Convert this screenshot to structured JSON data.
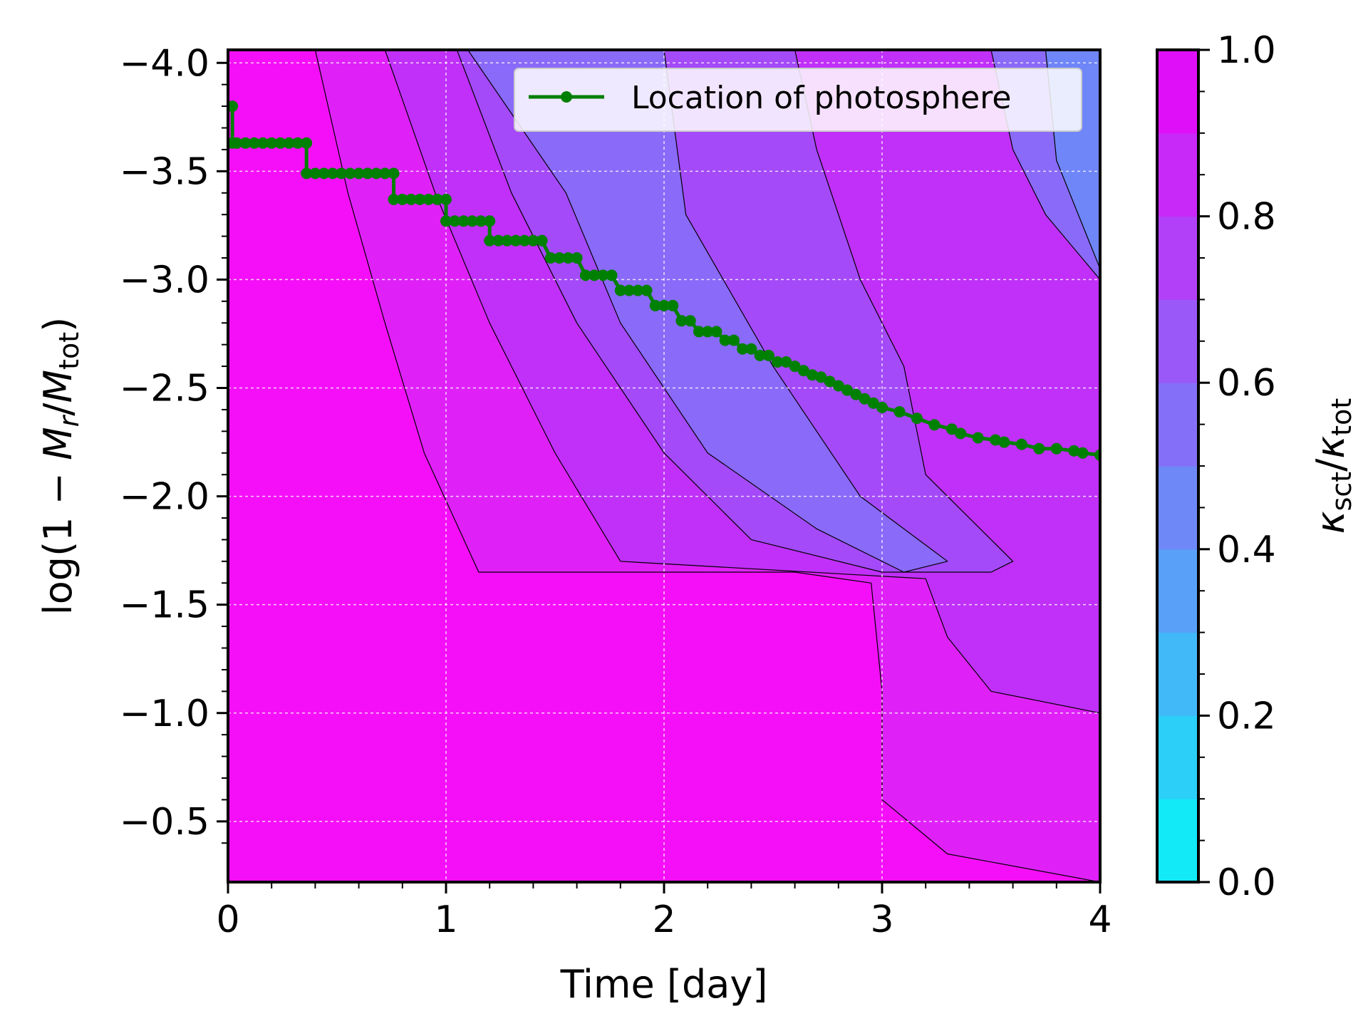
{
  "chart_data": {
    "type": "heatmap",
    "subtype": "filled contour with overlaid line",
    "xlabel": "Time [day]",
    "ylabel": "log(1 − M_r/M_tot)",
    "colorbar_label": "κ_sct/κ_tot",
    "xlim": [
      0,
      4
    ],
    "ylim": [
      -0.22,
      -4.06
    ],
    "y_axis_inverted": true,
    "grid": true,
    "x_ticks": [
      0,
      1,
      2,
      3,
      4
    ],
    "x_tick_labels": [
      "0",
      "1",
      "2",
      "3",
      "4"
    ],
    "y_ticks": [
      -4.0,
      -3.5,
      -3.0,
      -2.5,
      -2.0,
      -1.5,
      -1.0,
      -0.5
    ],
    "y_tick_labels": [
      "−4.0",
      "−3.5",
      "−3.0",
      "−2.5",
      "−2.0",
      "−1.5",
      "−1.0",
      "−0.5"
    ],
    "colorbar": {
      "range": [
        0.0,
        1.0
      ],
      "ticks": [
        0.0,
        0.2,
        0.4,
        0.6,
        0.8,
        1.0
      ],
      "tick_labels": [
        "0.0",
        "0.2",
        "0.4",
        "0.6",
        "0.8",
        "1.0"
      ],
      "levels": [
        0.0,
        0.1,
        0.2,
        0.3,
        0.4,
        0.5,
        0.6,
        0.7,
        0.8,
        0.9,
        1.0
      ],
      "colors": [
        "#12eaf8",
        "#2bcff8",
        "#41b8f8",
        "#58a0f8",
        "#6e88f8",
        "#8470f8",
        "#9a58f8",
        "#b140f8",
        "#c828f8",
        "#df10f8"
      ]
    },
    "contour_regions": [
      {
        "level_range": [
          0.9,
          1.0
        ],
        "color": "#f50ff8",
        "points": [
          [
            0,
            -0.22
          ],
          [
            0,
            -4.06
          ],
          [
            4,
            -4.06
          ],
          [
            4,
            -0.22
          ]
        ]
      },
      {
        "level_range": [
          0.8,
          0.9
        ],
        "color": "#df21f8",
        "points": [
          [
            0.4,
            -4.06
          ],
          [
            0.55,
            -3.4
          ],
          [
            0.72,
            -2.8
          ],
          [
            0.9,
            -2.2
          ],
          [
            1.15,
            -1.65
          ],
          [
            2.6,
            -1.65
          ],
          [
            2.95,
            -1.6
          ],
          [
            3.0,
            -1.1
          ],
          [
            3.0,
            -0.6
          ],
          [
            3.3,
            -0.35
          ],
          [
            4,
            -0.22
          ],
          [
            4,
            -4.06
          ]
        ]
      },
      {
        "level_range": [
          0.7,
          0.8
        ],
        "color": "#c030f8",
        "points": [
          [
            0.72,
            -4.06
          ],
          [
            0.95,
            -3.4
          ],
          [
            1.2,
            -2.8
          ],
          [
            1.5,
            -2.2
          ],
          [
            1.8,
            -1.7
          ],
          [
            3.2,
            -1.62
          ],
          [
            3.3,
            -1.35
          ],
          [
            3.5,
            -1.1
          ],
          [
            4,
            -1.0
          ],
          [
            4,
            -4.06
          ]
        ]
      },
      {
        "level_range": [
          0.6,
          0.7
        ],
        "color": "#a44af8",
        "points": [
          [
            1.05,
            -4.06
          ],
          [
            1.3,
            -3.4
          ],
          [
            1.6,
            -2.8
          ],
          [
            2.0,
            -2.2
          ],
          [
            2.4,
            -1.8
          ],
          [
            3.0,
            -1.65
          ],
          [
            3.5,
            -1.65
          ],
          [
            3.6,
            -1.7
          ],
          [
            3.2,
            -2.1
          ],
          [
            3.1,
            -2.6
          ],
          [
            2.9,
            -3.0
          ],
          [
            2.7,
            -3.6
          ],
          [
            2.6,
            -4.06
          ]
        ]
      },
      {
        "level_range": [
          0.5,
          0.6
        ],
        "color": "#8a6af8",
        "points": [
          [
            1.1,
            -4.06
          ],
          [
            1.55,
            -3.4
          ],
          [
            1.8,
            -2.8
          ],
          [
            2.2,
            -2.2
          ],
          [
            2.7,
            -1.85
          ],
          [
            3.1,
            -1.65
          ],
          [
            3.3,
            -1.7
          ],
          [
            2.9,
            -2.0
          ],
          [
            2.5,
            -2.6
          ],
          [
            2.1,
            -3.3
          ],
          [
            2.0,
            -4.06
          ]
        ]
      },
      {
        "level_range": [
          0.5,
          0.6
        ],
        "color": "#8a6af8",
        "points": [
          [
            3.5,
            -4.06
          ],
          [
            3.6,
            -3.6
          ],
          [
            3.75,
            -3.3
          ],
          [
            4,
            -3.0
          ],
          [
            4,
            -4.06
          ]
        ]
      },
      {
        "level_range": [
          0.4,
          0.5
        ],
        "color": "#6f86f8",
        "points": [
          [
            3.75,
            -4.06
          ],
          [
            3.8,
            -3.55
          ],
          [
            4,
            -3.05
          ],
          [
            4,
            -4.06
          ]
        ]
      }
    ],
    "series": [
      {
        "name": "Location of photosphere",
        "color": "#008000",
        "x": [
          0.02,
          0.02,
          0.04,
          0.08,
          0.12,
          0.16,
          0.2,
          0.24,
          0.28,
          0.32,
          0.36,
          0.36,
          0.4,
          0.44,
          0.48,
          0.52,
          0.56,
          0.6,
          0.64,
          0.68,
          0.72,
          0.76,
          0.76,
          0.8,
          0.84,
          0.88,
          0.92,
          0.96,
          1.0,
          1.0,
          1.04,
          1.08,
          1.12,
          1.16,
          1.2,
          1.2,
          1.24,
          1.28,
          1.32,
          1.36,
          1.4,
          1.44,
          1.48,
          1.52,
          1.56,
          1.6,
          1.64,
          1.68,
          1.72,
          1.76,
          1.8,
          1.84,
          1.88,
          1.92,
          1.96,
          2.0,
          2.04,
          2.08,
          2.12,
          2.16,
          2.2,
          2.24,
          2.28,
          2.32,
          2.36,
          2.4,
          2.44,
          2.48,
          2.52,
          2.56,
          2.6,
          2.64,
          2.68,
          2.72,
          2.76,
          2.8,
          2.84,
          2.88,
          2.92,
          2.96,
          3.0,
          3.08,
          3.16,
          3.24,
          3.32,
          3.36,
          3.44,
          3.52,
          3.56,
          3.64,
          3.72,
          3.8,
          3.88,
          3.92,
          4.0
        ],
        "y": [
          -3.8,
          -3.63,
          -3.63,
          -3.63,
          -3.63,
          -3.63,
          -3.63,
          -3.63,
          -3.63,
          -3.63,
          -3.63,
          -3.49,
          -3.49,
          -3.49,
          -3.49,
          -3.49,
          -3.49,
          -3.49,
          -3.49,
          -3.49,
          -3.49,
          -3.49,
          -3.37,
          -3.37,
          -3.37,
          -3.37,
          -3.37,
          -3.37,
          -3.37,
          -3.27,
          -3.27,
          -3.27,
          -3.27,
          -3.27,
          -3.27,
          -3.18,
          -3.18,
          -3.18,
          -3.18,
          -3.18,
          -3.18,
          -3.18,
          -3.1,
          -3.1,
          -3.1,
          -3.1,
          -3.02,
          -3.02,
          -3.02,
          -3.02,
          -2.95,
          -2.95,
          -2.95,
          -2.95,
          -2.88,
          -2.88,
          -2.88,
          -2.81,
          -2.81,
          -2.76,
          -2.76,
          -2.76,
          -2.72,
          -2.72,
          -2.68,
          -2.68,
          -2.65,
          -2.65,
          -2.62,
          -2.62,
          -2.6,
          -2.58,
          -2.56,
          -2.55,
          -2.53,
          -2.51,
          -2.49,
          -2.47,
          -2.45,
          -2.43,
          -2.41,
          -2.39,
          -2.36,
          -2.33,
          -2.31,
          -2.29,
          -2.27,
          -2.26,
          -2.25,
          -2.24,
          -2.22,
          -2.22,
          -2.21,
          -2.2,
          -2.19
        ]
      }
    ],
    "legend": {
      "position": "top-right",
      "entries": [
        "Location of photosphere"
      ]
    }
  }
}
